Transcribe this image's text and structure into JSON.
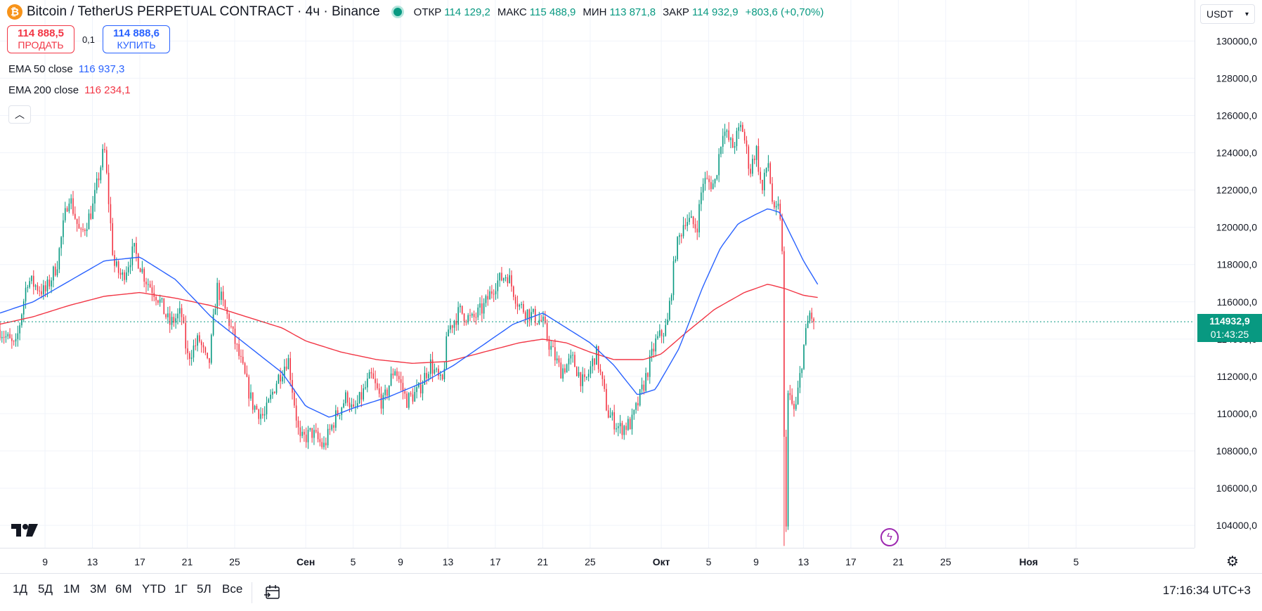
{
  "header": {
    "title": "Bitcoin / TetherUS PERPETUAL CONTRACT · 4ч · Binance",
    "logo_icon": "bitcoin-logo-icon",
    "status_icon": "market-open-dot-icon",
    "ohlc": {
      "open_label": "ОТКР",
      "open": "114 129,2",
      "high_label": "МАКС",
      "high": "115 488,9",
      "low_label": "МИН",
      "low": "113 871,8",
      "close_label": "ЗАКР",
      "close": "114 932,9",
      "change": "+803,6 (+0,70%)"
    }
  },
  "trade": {
    "sell_price": "114 888,5",
    "sell_label": "ПРОДАТЬ",
    "spread": "0,1",
    "buy_price": "114 888,6",
    "buy_label": "КУПИТЬ"
  },
  "indicators": [
    {
      "name": "EMA 50 close",
      "value": "116 937,3",
      "color": "#2962ff"
    },
    {
      "name": "EMA 200 close",
      "value": "116 234,1",
      "color": "#f23645"
    }
  ],
  "currency": "USDT",
  "last_price": {
    "price": "114932,9",
    "countdown": "01:43:25"
  },
  "colors": {
    "up": "#089981",
    "down": "#f23645",
    "ema50": "#2962ff",
    "ema200": "#f23645",
    "grid": "#f0f3fa"
  },
  "timeframes": [
    "1Д",
    "5Д",
    "1М",
    "3М",
    "6М",
    "YTD",
    "1Г",
    "5Л",
    "Все"
  ],
  "clock": "17:16:34 UTC+3",
  "chart_data": {
    "type": "candlestick",
    "title": "Bitcoin / TetherUS PERPETUAL CONTRACT",
    "interval": "4ч",
    "y_ticks": [
      "130000,0",
      "128000,0",
      "126000,0",
      "124000,0",
      "122000,0",
      "120000,0",
      "118000,0",
      "116000,0",
      "114000,0",
      "112000,0",
      "110000,0",
      "108000,0",
      "106000,0",
      "104000,0"
    ],
    "ylim": [
      102800,
      132200
    ],
    "x_ticks": [
      {
        "label": "9",
        "day": 9
      },
      {
        "label": "13",
        "day": 13
      },
      {
        "label": "17",
        "day": 17
      },
      {
        "label": "21",
        "day": 21
      },
      {
        "label": "25",
        "day": 25
      },
      {
        "label": "Сен",
        "day": 31
      },
      {
        "label": "5",
        "day": 35
      },
      {
        "label": "9",
        "day": 39
      },
      {
        "label": "13",
        "day": 43
      },
      {
        "label": "17",
        "day": 47
      },
      {
        "label": "21",
        "day": 51
      },
      {
        "label": "25",
        "day": 55
      },
      {
        "label": "Окт",
        "day": 61
      },
      {
        "label": "5",
        "day": 65
      },
      {
        "label": "9",
        "day": 69
      },
      {
        "label": "13",
        "day": 73
      },
      {
        "label": "17",
        "day": 77
      },
      {
        "label": "21",
        "day": 81
      },
      {
        "label": "25",
        "day": 85
      },
      {
        "label": "Ноя",
        "day": 92
      },
      {
        "label": "5",
        "day": 96
      }
    ],
    "day_range": [
      5.2,
      106
    ],
    "key_points": [
      [
        5.2,
        114500
      ],
      [
        6.5,
        113500
      ],
      [
        7.5,
        117200
      ],
      [
        9,
        116500
      ],
      [
        10,
        118000
      ],
      [
        11,
        121800
      ],
      [
        12,
        119500
      ],
      [
        13,
        121000
      ],
      [
        14,
        124300
      ],
      [
        14.8,
        118000
      ],
      [
        15.5,
        117300
      ],
      [
        16.5,
        118800
      ],
      [
        17.5,
        117200
      ],
      [
        18.5,
        116300
      ],
      [
        19.5,
        114800
      ],
      [
        20.5,
        115400
      ],
      [
        21,
        113000
      ],
      [
        22,
        114000
      ],
      [
        22.8,
        112400
      ],
      [
        23.5,
        116800
      ],
      [
        24.5,
        115000
      ],
      [
        25.5,
        112800
      ],
      [
        26.5,
        110500
      ],
      [
        27.5,
        109800
      ],
      [
        28.5,
        111700
      ],
      [
        29.5,
        113000
      ],
      [
        30.5,
        108500
      ],
      [
        31.5,
        109000
      ],
      [
        32.5,
        108200
      ],
      [
        33.5,
        109800
      ],
      [
        34.5,
        111000
      ],
      [
        35,
        110000
      ],
      [
        36.5,
        112000
      ],
      [
        37.5,
        110500
      ],
      [
        38.5,
        112500
      ],
      [
        39.5,
        110700
      ],
      [
        40.5,
        111200
      ],
      [
        41.5,
        112700
      ],
      [
        42.5,
        111500
      ],
      [
        43,
        114500
      ],
      [
        44,
        115500
      ],
      [
        45,
        115000
      ],
      [
        46,
        115700
      ],
      [
        47,
        117000
      ],
      [
        48,
        117500
      ],
      [
        49,
        115800
      ],
      [
        50,
        115300
      ],
      [
        51,
        114900
      ],
      [
        51.5,
        113800
      ],
      [
        52.5,
        112300
      ],
      [
        53.5,
        112900
      ],
      [
        54.5,
        111500
      ],
      [
        55.5,
        113300
      ],
      [
        56.5,
        110000
      ],
      [
        57.5,
        109200
      ],
      [
        58.5,
        109500
      ],
      [
        59.5,
        111500
      ],
      [
        60.5,
        113800
      ],
      [
        61.5,
        114700
      ],
      [
        62.2,
        118700
      ],
      [
        63,
        120500
      ],
      [
        64,
        120000
      ],
      [
        64.5,
        122500
      ],
      [
        65.5,
        122300
      ],
      [
        66.2,
        125300
      ],
      [
        67,
        124300
      ],
      [
        67.8,
        125500
      ],
      [
        68.5,
        123000
      ],
      [
        69,
        124300
      ],
      [
        69.5,
        121800
      ],
      [
        70,
        123700
      ],
      [
        70.5,
        120600
      ],
      [
        71,
        121100
      ],
      [
        71.2,
        118500
      ],
      [
        71.4,
        106500
      ],
      [
        71.5,
        103000
      ],
      [
        71.7,
        111000
      ],
      [
        72.3,
        110000
      ],
      [
        73,
        113500
      ],
      [
        73.5,
        115400
      ],
      [
        74,
        114932
      ]
    ],
    "ema50_points": [
      [
        5.2,
        115400
      ],
      [
        8,
        116000
      ],
      [
        11,
        117100
      ],
      [
        14,
        118200
      ],
      [
        17,
        118400
      ],
      [
        20,
        117200
      ],
      [
        23,
        115200
      ],
      [
        26,
        113700
      ],
      [
        29,
        112200
      ],
      [
        31,
        110400
      ],
      [
        33,
        109800
      ],
      [
        35,
        110300
      ],
      [
        38,
        110900
      ],
      [
        41,
        111700
      ],
      [
        43.5,
        112600
      ],
      [
        46,
        113700
      ],
      [
        48.5,
        114800
      ],
      [
        51,
        115400
      ],
      [
        53,
        114600
      ],
      [
        55,
        113800
      ],
      [
        57,
        112600
      ],
      [
        59,
        111000
      ],
      [
        60.5,
        111300
      ],
      [
        62.5,
        113500
      ],
      [
        64.5,
        116800
      ],
      [
        66,
        118900
      ],
      [
        67.5,
        120200
      ],
      [
        69,
        120700
      ],
      [
        70,
        121000
      ],
      [
        71,
        120800
      ],
      [
        72,
        119500
      ],
      [
        73,
        118200
      ],
      [
        74.2,
        116937
      ]
    ],
    "ema200_points": [
      [
        5.2,
        114800
      ],
      [
        8,
        115200
      ],
      [
        11,
        115800
      ],
      [
        14,
        116300
      ],
      [
        17,
        116500
      ],
      [
        20,
        116200
      ],
      [
        23,
        115800
      ],
      [
        26,
        115200
      ],
      [
        29,
        114600
      ],
      [
        31,
        113900
      ],
      [
        34,
        113300
      ],
      [
        37,
        112900
      ],
      [
        40,
        112700
      ],
      [
        43,
        112800
      ],
      [
        46,
        113300
      ],
      [
        49,
        113800
      ],
      [
        51,
        114000
      ],
      [
        53,
        113800
      ],
      [
        55,
        113300
      ],
      [
        57,
        112900
      ],
      [
        59.5,
        112900
      ],
      [
        61,
        113200
      ],
      [
        63,
        114300
      ],
      [
        65.5,
        115600
      ],
      [
        68,
        116500
      ],
      [
        70,
        116950
      ],
      [
        71.5,
        116700
      ],
      [
        73,
        116350
      ],
      [
        74.2,
        116234
      ]
    ]
  }
}
